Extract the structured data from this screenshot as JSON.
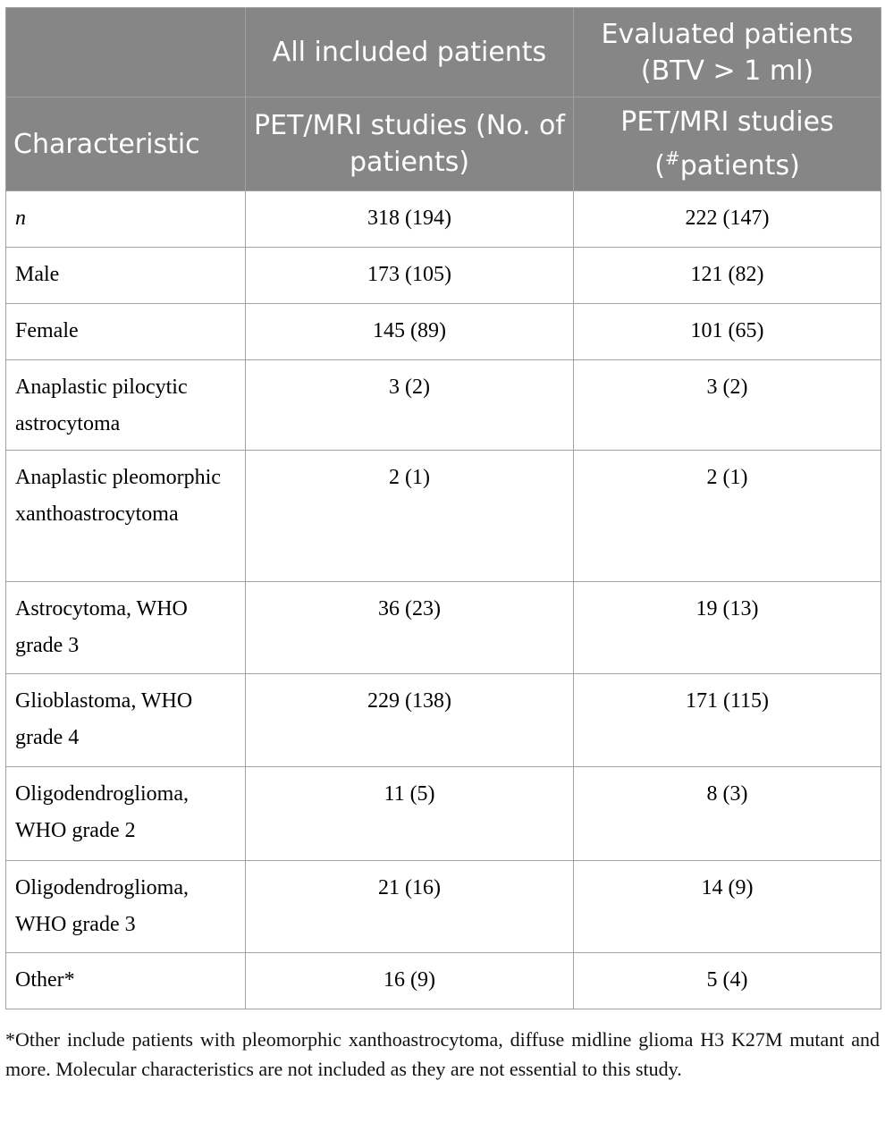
{
  "table": {
    "header": [
      [
        "",
        "All included patients",
        "Evaluated patients (BTV > 1 ml)"
      ],
      [
        "Characteristic",
        "PET/MRI studies (No. of patients)",
        {
          "before": "(",
          "sup": "#",
          "after": "patients)",
          "lead": "PET/MRI studies"
        }
      ]
    ],
    "rows": [
      [
        "n",
        "318 (194)",
        "222 (147)"
      ],
      [
        "Male",
        "173 (105)",
        "121 (82)"
      ],
      [
        "Female",
        "145 (89)",
        "101 (65)"
      ],
      [
        "Anaplastic pilocytic astrocytoma",
        "3 (2)",
        "3 (2)"
      ],
      [
        "Anaplastic pleomorphic xanthoastrocytoma",
        "2 (1)",
        "2 (1)"
      ],
      [
        "Astrocytoma, WHO grade 3",
        "36 (23)",
        "19 (13)"
      ],
      [
        "Glioblastoma, WHO grade 4",
        "229 (138)",
        "171 (115)"
      ],
      [
        "Oligodendroglioma, WHO grade 2",
        "11 (5)",
        "8 (3)"
      ],
      [
        "Oligodendroglioma, WHO grade 3",
        "21 (16)",
        "14 (9)"
      ],
      [
        "Other*",
        "16 (9)",
        "5 (4)"
      ]
    ]
  },
  "footnote": "*Other include patients with pleomorphic xanthoastrocytoma, diffuse midline glioma H3 K27M mutant and more. Molecular characteristics are not included as they are not essential to this study."
}
